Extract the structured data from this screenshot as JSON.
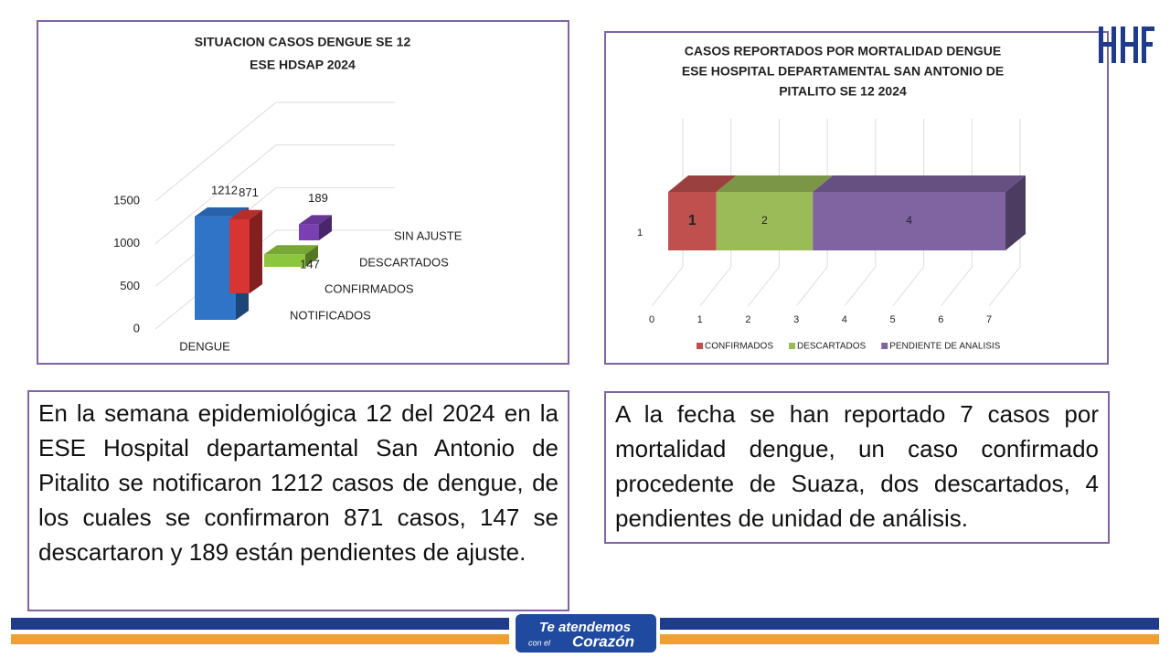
{
  "chart_data": [
    {
      "type": "bar3d",
      "title": [
        "SITUACION CASOS DENGUE  SE 12",
        "ESE HDSAP 2024"
      ],
      "categories": [
        "DENGUE"
      ],
      "series": [
        {
          "name": "NOTIFICADOS",
          "color": "#2f74c7",
          "values": [
            1212
          ]
        },
        {
          "name": "CONFIRMADOS",
          "color": "#d93434",
          "values": [
            871
          ]
        },
        {
          "name": "DESCARTADOS",
          "color": "#8cc63e",
          "values": [
            147
          ]
        },
        {
          "name": "SIN AJUSTE",
          "color": "#7a3fb0",
          "values": [
            189
          ]
        }
      ],
      "ylim": [
        0,
        1500
      ],
      "yticks": [
        0,
        500,
        1000,
        1500
      ],
      "grid": true
    },
    {
      "type": "stacked_hbar3d",
      "title": [
        "CASOS REPORTADOS POR MORTALIDAD DENGUE",
        "ESE HOSPITAL DEPARTAMENTAL SAN ANTONIO DE",
        "PITALITO  SE 12 2024"
      ],
      "categories": [
        "1"
      ],
      "series": [
        {
          "name": "CONFIRMADOS",
          "color": "#c0504d",
          "values": [
            1
          ]
        },
        {
          "name": "DESCARTADOS",
          "color": "#9bbb59",
          "values": [
            2
          ]
        },
        {
          "name": "PENDIENTE DE ANALISIS",
          "color": "#8064a2",
          "values": [
            4
          ]
        }
      ],
      "xlim": [
        0,
        7
      ],
      "xticks": [
        0,
        1,
        2,
        3,
        4,
        5,
        6,
        7
      ],
      "grid": true,
      "legend": "bottom"
    }
  ],
  "texts": {
    "left": "En la semana epidemiológica 12 del 2024 en la ESE Hospital departamental San Antonio de Pitalito se notificaron 1212 casos de dengue, de los cuales se confirmaron 871 casos,  147 se descartaron y  189 están pendientes de ajuste.",
    "right": "A la fecha se han reportado 7 casos por mortalidad dengue, un caso confirmado procedente de Suaza, dos descartados, 4 pendientes de unidad de análisis."
  },
  "footer": {
    "slogan": [
      "Te atendemos",
      "con el",
      "Corazón"
    ]
  }
}
